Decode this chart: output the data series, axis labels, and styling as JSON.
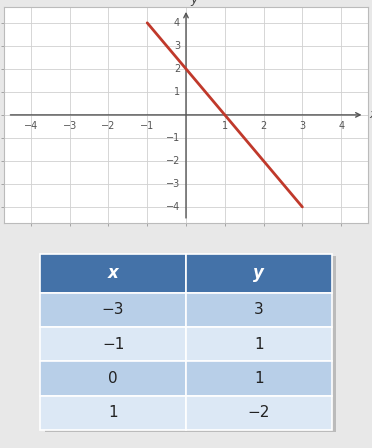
{
  "line_x_start": -1.0,
  "line_x_end": 3.0,
  "line_slope": -2.0,
  "line_intercept": 2.0,
  "line_color": "#c0392b",
  "line_width": 2.0,
  "grid_color": "#d0d0d0",
  "xlim": [
    -4.7,
    4.7
  ],
  "ylim": [
    -4.7,
    4.7
  ],
  "xticks": [
    -4,
    -3,
    -2,
    -1,
    1,
    2,
    3,
    4
  ],
  "yticks": [
    -4,
    -3,
    -2,
    -1,
    1,
    2,
    3,
    4
  ],
  "xlabel": "x",
  "ylabel": "y",
  "bg_color": "#e8e8e8",
  "plot_bg": "#ffffff",
  "table_headers": [
    "x",
    "y"
  ],
  "table_x": [
    "−3",
    "−1",
    "0",
    "1"
  ],
  "table_y": [
    "3",
    "1",
    "1",
    "−2"
  ],
  "header_bg": "#4472a8",
  "header_text_color": "#ffffff",
  "row_colors": [
    "#b8cfe8",
    "#dce8f5",
    "#b8cfe8",
    "#dce8f5"
  ],
  "row_text_color": "#222222",
  "table_font_size": 11,
  "header_font_size": 12
}
